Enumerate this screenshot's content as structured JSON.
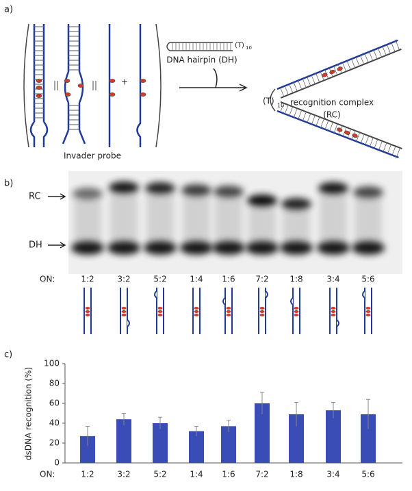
{
  "panel_a": {
    "label": "a)",
    "invader_caption": "Invader probe",
    "plus": "+",
    "hairpin_tag": {
      "text": "(T)",
      "sub": "10"
    },
    "hairpin_caption": "DNA hairpin (DH)",
    "complex_tag": {
      "text": "(T)",
      "sub": "10"
    },
    "complex_caption": "recognition complex",
    "complex_abbrev": "(RC)"
  },
  "panel_b": {
    "label": "b)",
    "rc": "RC",
    "dh": "DH",
    "on": "ON:"
  },
  "chart_data": {
    "type": "bar",
    "panel_label": "c)",
    "y_label": "dsDNA recognition (%)",
    "x_label": "ON:",
    "categories": [
      "1:2",
      "3:2",
      "5:2",
      "1:4",
      "1:6",
      "7:2",
      "1:8",
      "3:4",
      "5:6"
    ],
    "values": [
      27,
      44,
      40,
      32,
      37,
      60,
      49,
      53,
      49
    ],
    "errors": [
      10,
      6,
      6,
      5,
      6,
      11,
      12,
      8,
      15
    ],
    "color": "#3a4cb5",
    "ylim": [
      0,
      100
    ],
    "yticks": [
      0,
      20,
      40,
      60,
      80,
      100
    ]
  }
}
